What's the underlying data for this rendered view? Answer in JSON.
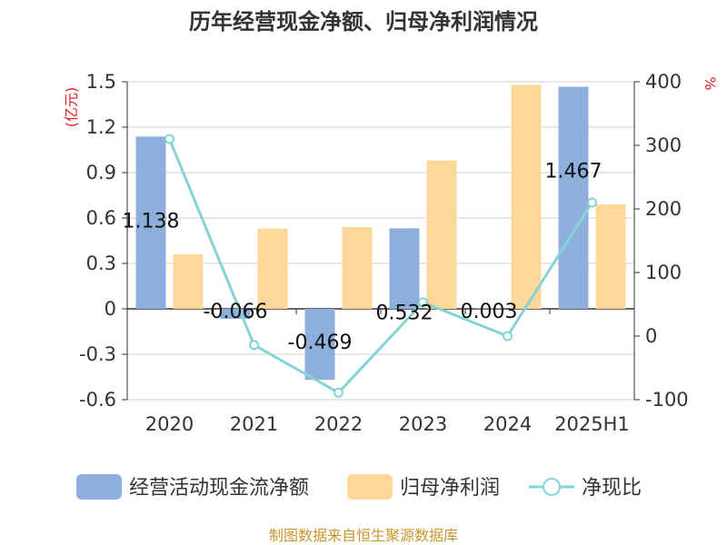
{
  "title": "历年经营现金净额、归母净利润情况",
  "source": "制图数据来自恒生聚源数据库",
  "chart_data": {
    "type": "bar",
    "title": "历年经营现金净额、归母净利润情况",
    "categories": [
      "2020",
      "2021",
      "2022",
      "2023",
      "2024",
      "2025H1"
    ],
    "left_axis": {
      "unit_label": "(亿元)",
      "ylim": [
        -0.6,
        1.5
      ],
      "ticks": [
        "1.5",
        "1.2",
        "0.9",
        "0.6",
        "0.3",
        "0",
        "-0.3",
        "-0.6"
      ],
      "tick_values": [
        1.5,
        1.2,
        0.9,
        0.6,
        0.3,
        0,
        -0.3,
        -0.6
      ]
    },
    "right_axis": {
      "unit_label": "%",
      "ylim": [
        -100,
        400
      ],
      "ticks": [
        "400",
        "300",
        "200",
        "100",
        "0",
        "-100"
      ],
      "tick_values": [
        400,
        300,
        200,
        100,
        0,
        -100
      ]
    },
    "grid": true,
    "legend_position": "bottom",
    "series": [
      {
        "name": "经营活动现金流净额",
        "type": "bar",
        "axis": "left",
        "color": "#8eafdc",
        "values": [
          1.138,
          -0.066,
          -0.469,
          0.532,
          0.003,
          1.467
        ],
        "labels": [
          "1.138",
          "-0.066",
          "-0.469",
          "0.532",
          "0.003",
          "1.467"
        ]
      },
      {
        "name": "归母净利润",
        "type": "bar",
        "axis": "left",
        "color": "#fdd89a",
        "values": [
          0.36,
          0.53,
          0.54,
          0.98,
          1.48,
          0.69
        ]
      },
      {
        "name": "净现比",
        "type": "line",
        "axis": "right",
        "color": "#86d3d6",
        "values": [
          310,
          -14,
          -89,
          53,
          0,
          210
        ]
      }
    ]
  }
}
